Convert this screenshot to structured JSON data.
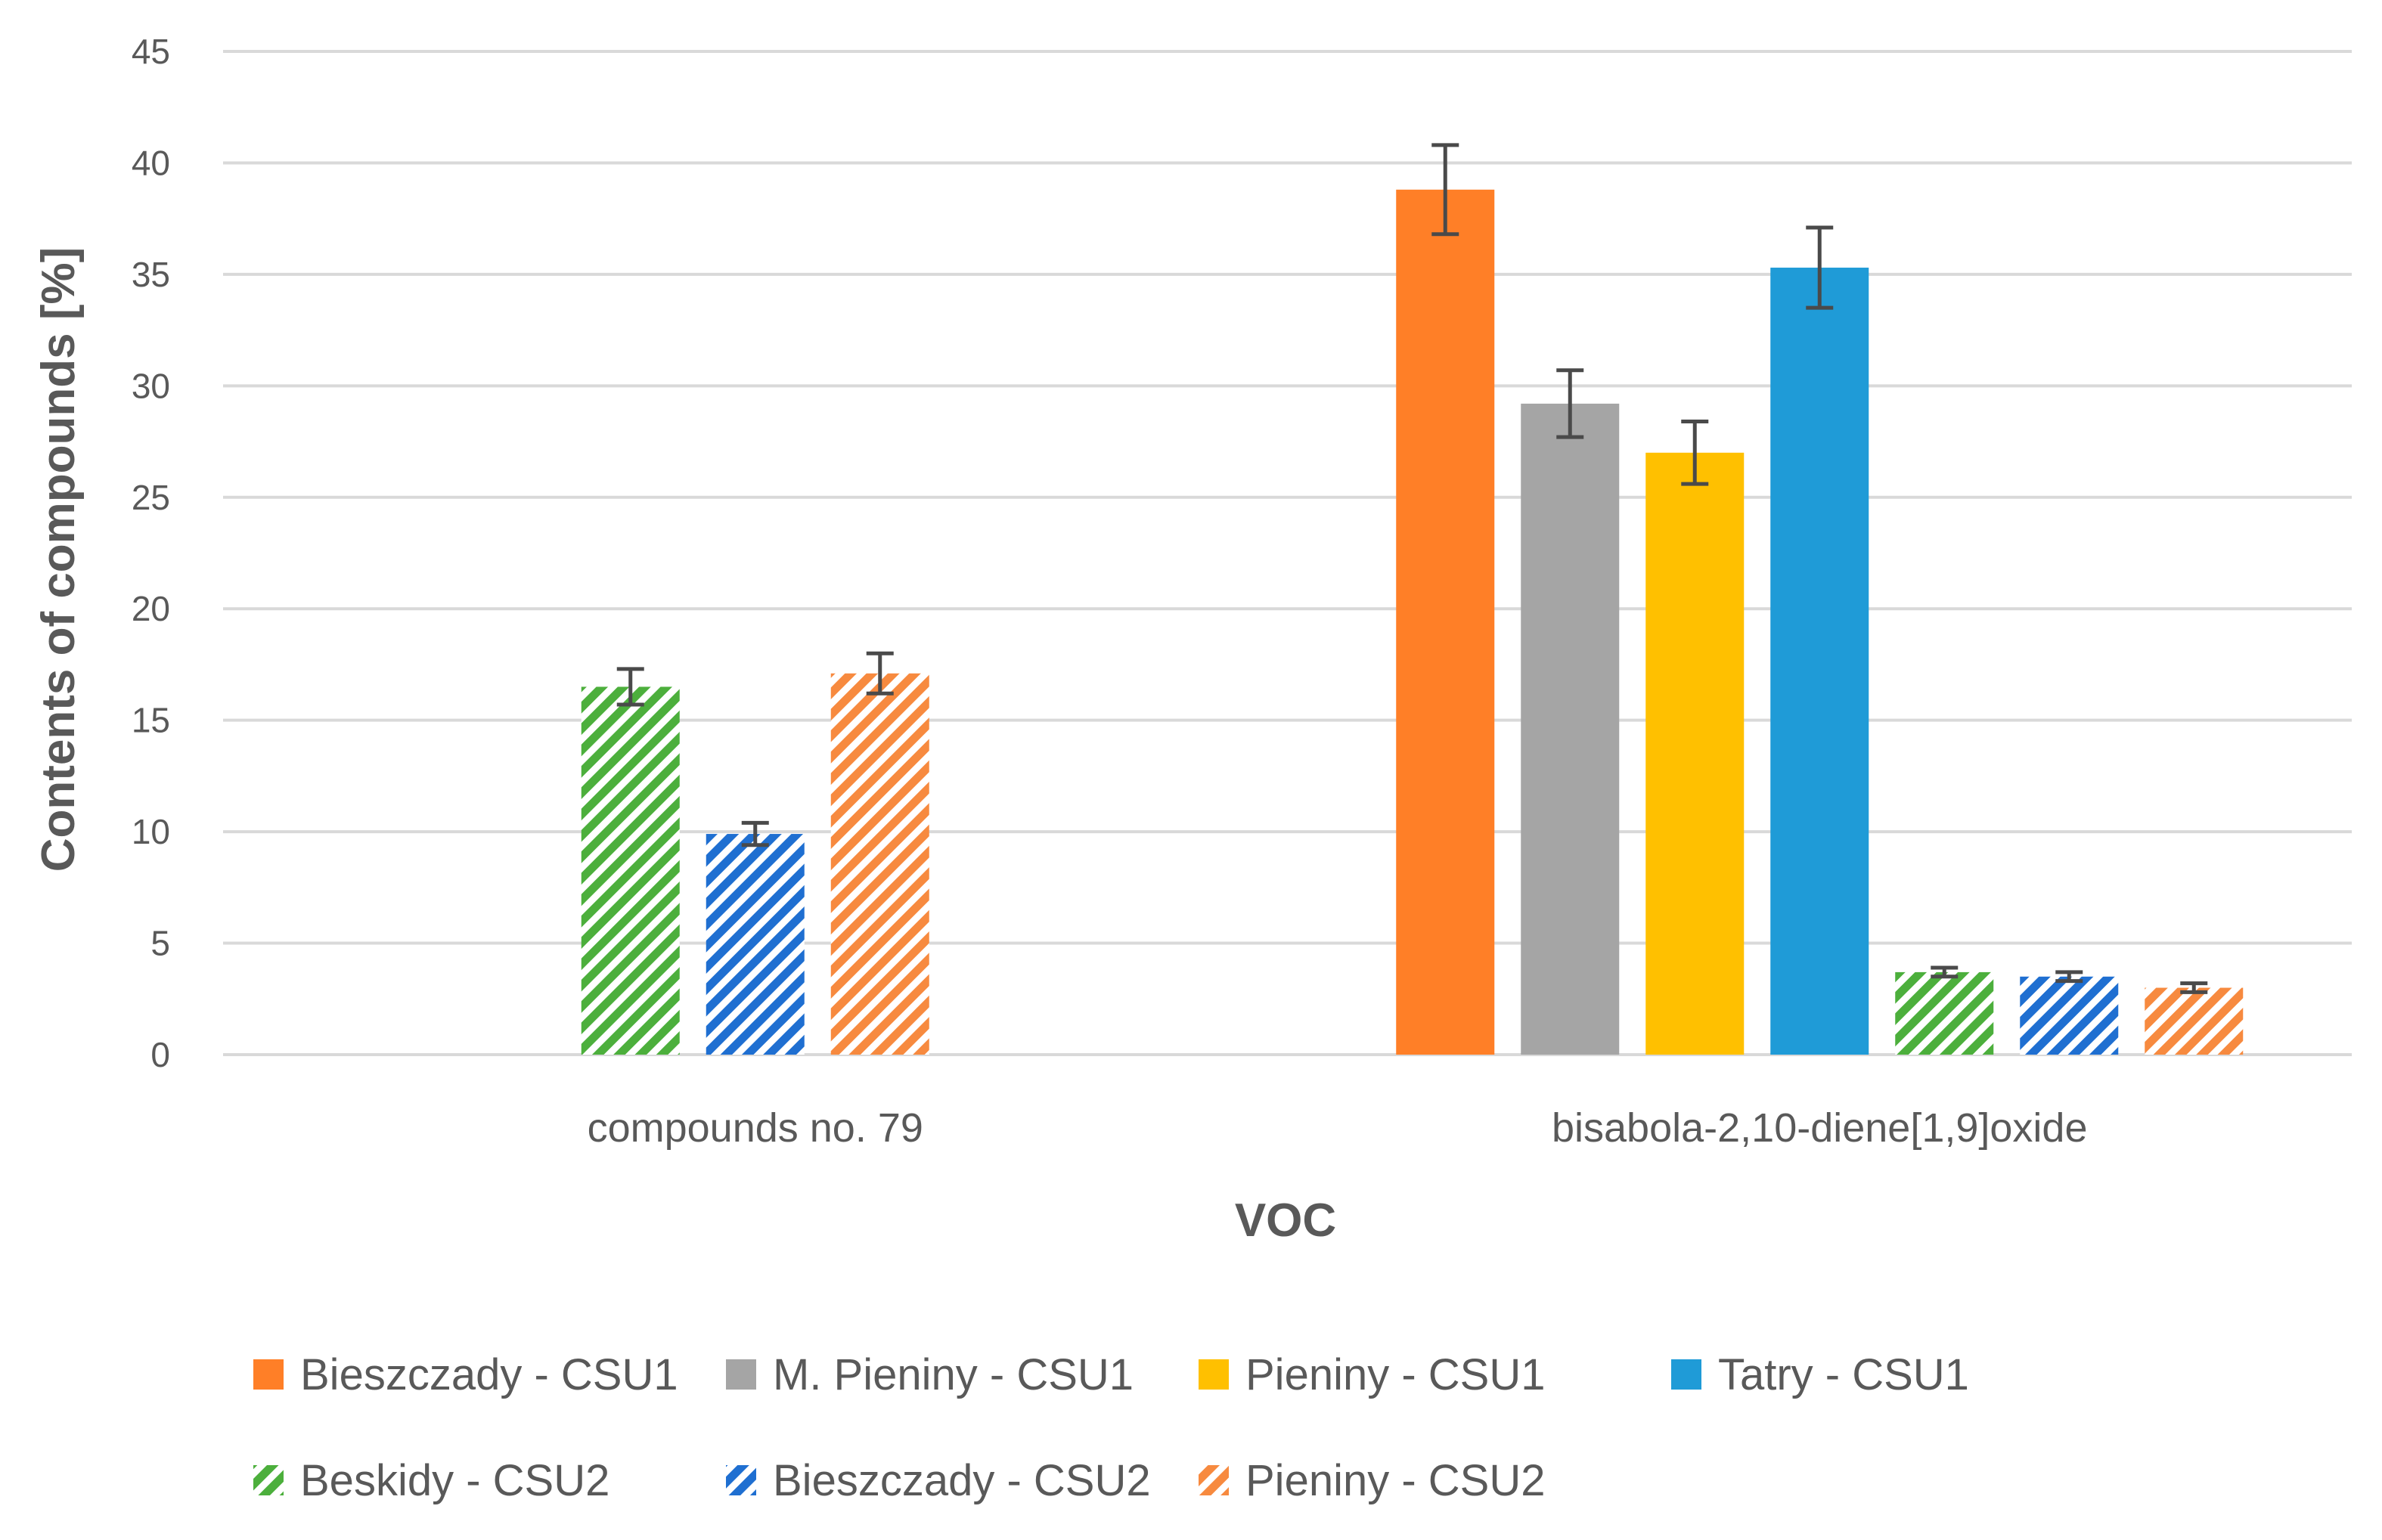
{
  "chart_data": {
    "type": "bar",
    "title": "",
    "xlabel": "VOC",
    "ylabel": "Contents of compounds [%]",
    "ylim": [
      0,
      45
    ],
    "yticks": [
      0,
      5,
      10,
      15,
      20,
      25,
      30,
      35,
      40,
      45
    ],
    "grid": true,
    "legend_position": "bottom",
    "categories": [
      "compounds no. 79",
      "bisabola-2,10-diene[1,9]oxide"
    ],
    "series": [
      {
        "name": "Bieszczady - CSU1",
        "color": "#FF7F27",
        "hatched": false,
        "values": [
          null,
          38.8
        ],
        "errors": [
          null,
          2.0
        ]
      },
      {
        "name": "M. Pieniny - CSU1",
        "color": "#A5A5A5",
        "hatched": false,
        "values": [
          null,
          29.2
        ],
        "errors": [
          null,
          1.5
        ]
      },
      {
        "name": "Pieniny - CSU1",
        "color": "#FFC000",
        "hatched": false,
        "values": [
          null,
          27.0
        ],
        "errors": [
          null,
          1.4
        ]
      },
      {
        "name": "Tatry - CSU1",
        "color": "#1F9BD7",
        "hatched": false,
        "values": [
          null,
          35.3
        ],
        "errors": [
          null,
          1.8
        ]
      },
      {
        "name": "Beskidy - CSU2",
        "color": "#4CAF3C",
        "hatched": true,
        "values": [
          16.5,
          3.7
        ],
        "errors": [
          0.8,
          0.2
        ]
      },
      {
        "name": "Bieszczady - CSU2",
        "color": "#1F6FD1",
        "hatched": true,
        "values": [
          9.9,
          3.5
        ],
        "errors": [
          0.5,
          0.2
        ]
      },
      {
        "name": "Pieniny - CSU2",
        "color": "#F78A3F",
        "hatched": true,
        "values": [
          17.1,
          3.0
        ],
        "errors": [
          0.9,
          0.2
        ]
      }
    ]
  }
}
